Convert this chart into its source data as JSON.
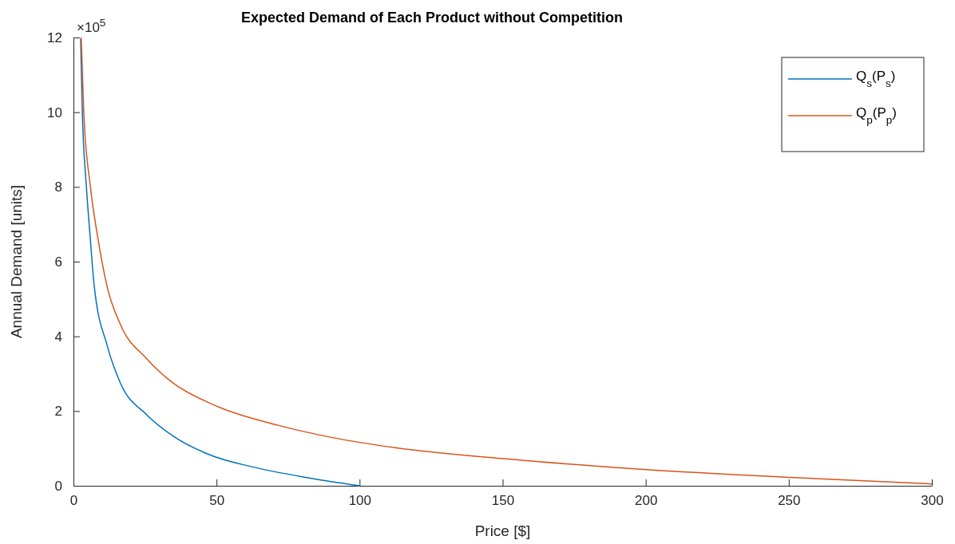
{
  "chart_data": {
    "type": "line",
    "title": "Expected Demand of Each Product without Competition",
    "xlabel": "Price [$]",
    "ylabel": "Annual Demand [units]",
    "annotations": [
      "×10$^{5}$"
    ],
    "xlim": [
      0,
      300
    ],
    "xticks": [
      0,
      50,
      100,
      150,
      200,
      250,
      300
    ],
    "ylim": [
      0,
      12
    ],
    "yticks": [
      0,
      2,
      4,
      6,
      8,
      10,
      12
    ],
    "grid": false,
    "legend": "top right",
    "marker": "none",
    "line_style": "solid",
    "series": [
      {
        "name": "Q$_{s}$(P$_{s}$)",
        "color": "#0072bd",
        "x": [
          2.5,
          3.1,
          4.5,
          5.9,
          7.2,
          11.8,
          16.4,
          25.6,
          34.8,
          48.6,
          62.3,
          80.7,
          100
        ],
        "values": [
          11.97,
          10.0,
          8.03,
          6.6,
          5.39,
          3.75,
          2.75,
          1.9,
          1.33,
          0.8,
          0.51,
          0.23,
          0
        ]
      },
      {
        "name": "Q$_{p}$(P$_{p}$)",
        "color": "#d95319",
        "x": [
          2.7,
          3.6,
          5.9,
          8.6,
          11.8,
          16.4,
          25.6,
          34.8,
          48.6,
          71.5,
          89.9,
          112.4,
          149.6,
          199.2,
          248.8,
          300
        ],
        "values": [
          12.0,
          10.0,
          8.02,
          6.6,
          5.32,
          4.32,
          3.4,
          2.75,
          2.18,
          1.62,
          1.3,
          1.02,
          0.73,
          0.44,
          0.23,
          0.05
        ]
      }
    ]
  }
}
